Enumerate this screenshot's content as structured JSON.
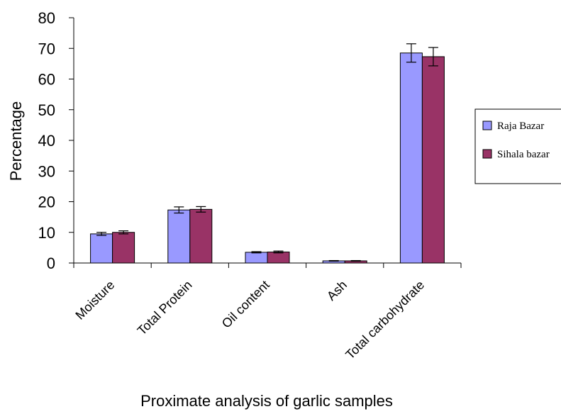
{
  "chart_data": {
    "type": "bar",
    "categories": [
      "Moisture",
      "Total Protein",
      "Oil content",
      "Ash",
      "Total carbohydrate"
    ],
    "series": [
      {
        "name": "Raja Bazar",
        "color": "#9999ff",
        "values": [
          9.5,
          17.3,
          3.5,
          0.7,
          68.5
        ],
        "errors": [
          0.5,
          1.0,
          0.2,
          0.1,
          3.0
        ]
      },
      {
        "name": "Sihala bazar",
        "color": "#993366",
        "values": [
          10.0,
          17.5,
          3.6,
          0.7,
          67.3
        ],
        "errors": [
          0.5,
          0.9,
          0.3,
          0.1,
          3.0
        ]
      }
    ],
    "title": "",
    "xlabel": "Proximate analysis of garlic samples",
    "ylabel": "Percentage",
    "ylim": [
      0,
      80
    ],
    "yticks": [
      "0",
      "10",
      "20",
      "30",
      "40",
      "50",
      "60",
      "70",
      "80"
    ],
    "grid": false,
    "legend_position": "right"
  }
}
